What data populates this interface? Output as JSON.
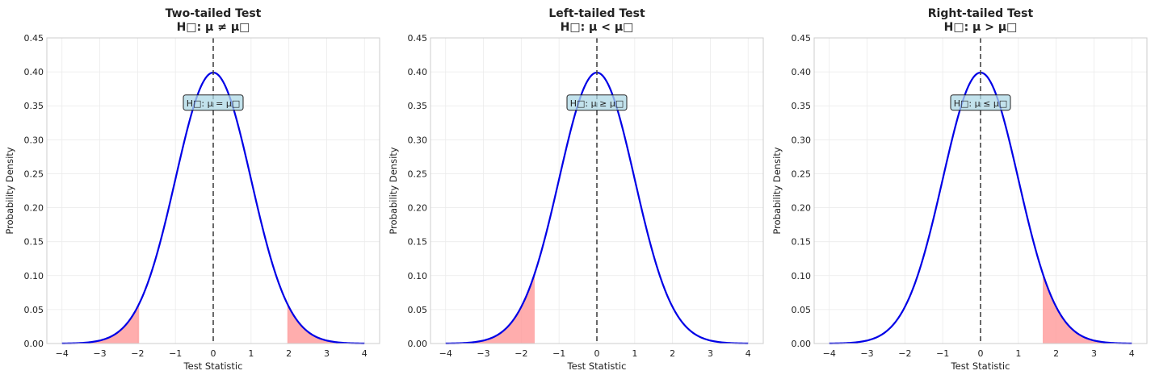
{
  "chart_data": [
    {
      "type": "line",
      "title": "Two-tailed Test",
      "subtitle": "H□: μ ≠ μ□",
      "xlabel": "Test Statistic",
      "ylabel": "Probability Density",
      "xlim": [
        -4.4,
        4.4
      ],
      "ylim": [
        0,
        0.45
      ],
      "xticks": [
        -4,
        -3,
        -2,
        -1,
        0,
        1,
        2,
        3,
        4
      ],
      "yticks": [
        "0.00",
        "0.05",
        "0.10",
        "0.15",
        "0.20",
        "0.25",
        "0.30",
        "0.35",
        "0.40",
        "0.45"
      ],
      "grid": true,
      "curve": {
        "distribution": "standard normal",
        "x_range": [
          -4,
          4
        ],
        "peak": [
          0,
          0.399
        ],
        "color": "#0000e6"
      },
      "rejection_regions": [
        [
          -4,
          -1.96
        ],
        [
          1.96,
          4
        ]
      ],
      "vertical_line_x": 0,
      "annotation": {
        "text": "H□: μ = μ□",
        "x": 0,
        "y": 0.353
      },
      "shade_color": "#ff9999"
    },
    {
      "type": "line",
      "title": "Left-tailed Test",
      "subtitle": "H□: μ < μ□",
      "xlabel": "Test Statistic",
      "ylabel": "Probability Density",
      "xlim": [
        -4.4,
        4.4
      ],
      "ylim": [
        0,
        0.45
      ],
      "xticks": [
        -4,
        -3,
        -2,
        -1,
        0,
        1,
        2,
        3,
        4
      ],
      "yticks": [
        "0.00",
        "0.05",
        "0.10",
        "0.15",
        "0.20",
        "0.25",
        "0.30",
        "0.35",
        "0.40",
        "0.45"
      ],
      "grid": true,
      "curve": {
        "distribution": "standard normal",
        "x_range": [
          -4,
          4
        ],
        "peak": [
          0,
          0.399
        ],
        "color": "#0000e6"
      },
      "rejection_regions": [
        [
          -4,
          -1.645
        ]
      ],
      "vertical_line_x": 0,
      "annotation": {
        "text": "H□: μ ≥ μ□",
        "x": 0,
        "y": 0.353
      },
      "shade_color": "#ff9999"
    },
    {
      "type": "line",
      "title": "Right-tailed Test",
      "subtitle": "H□: μ > μ□",
      "xlabel": "Test Statistic",
      "ylabel": "Probability Density",
      "xlim": [
        -4.4,
        4.4
      ],
      "ylim": [
        0,
        0.45
      ],
      "xticks": [
        -4,
        -3,
        -2,
        -1,
        0,
        1,
        2,
        3,
        4
      ],
      "yticks": [
        "0.00",
        "0.05",
        "0.10",
        "0.15",
        "0.20",
        "0.25",
        "0.30",
        "0.35",
        "0.40",
        "0.45"
      ],
      "grid": true,
      "curve": {
        "distribution": "standard normal",
        "x_range": [
          -4,
          4
        ],
        "peak": [
          0,
          0.399
        ],
        "color": "#0000e6"
      },
      "rejection_regions": [
        [
          1.645,
          4
        ]
      ],
      "vertical_line_x": 0,
      "annotation": {
        "text": "H□: μ ≤ μ□",
        "x": 0,
        "y": 0.353
      },
      "shade_color": "#ff9999"
    }
  ]
}
